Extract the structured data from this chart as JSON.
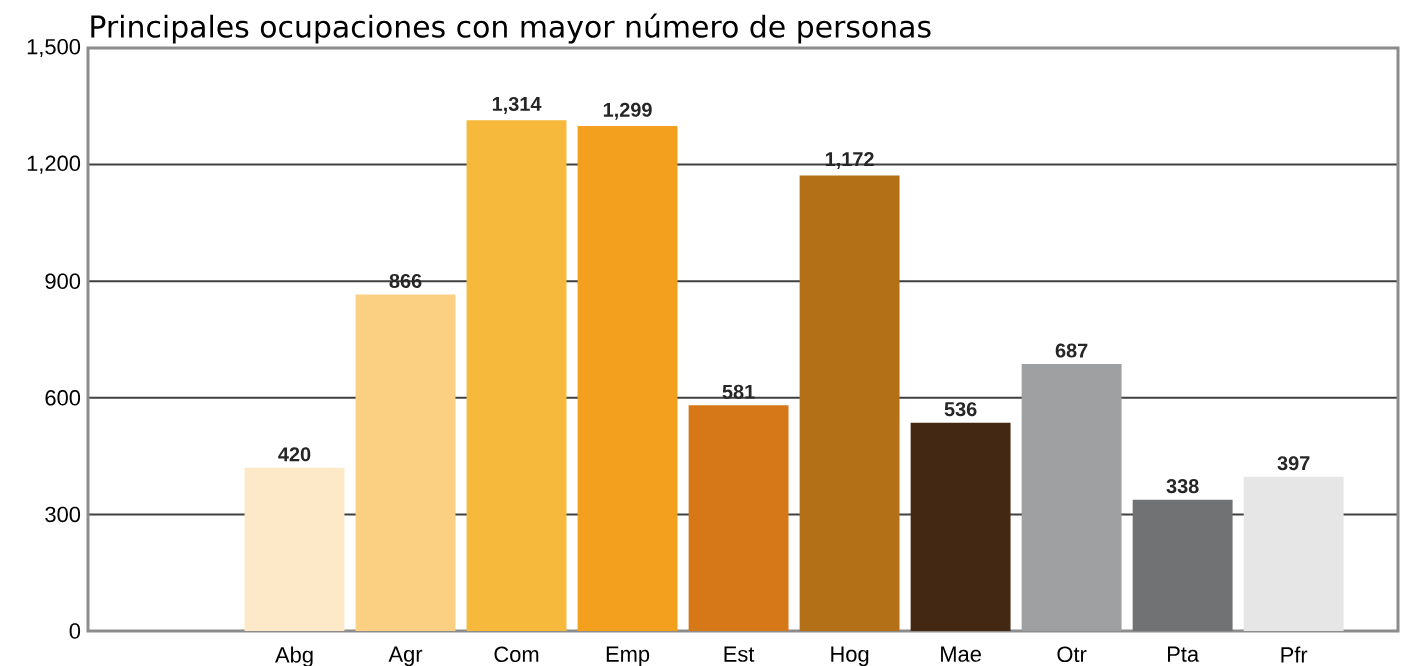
{
  "chart_data": {
    "type": "bar",
    "title": "Principales ocupaciones con mayor número de personas",
    "categories": [
      "Abg",
      "Agr",
      "Com",
      "Emp",
      "Est",
      "Hog",
      "Mae",
      "Otr",
      "Pta",
      "Pfr"
    ],
    "values": [
      420,
      866,
      1314,
      1299,
      581,
      1172,
      536,
      687,
      338,
      397
    ],
    "colors": [
      "#fde9c8",
      "#fbd083",
      "#f6b93b",
      "#f2a01e",
      "#d77818",
      "#b37016",
      "#432913",
      "#9fa0a2",
      "#717274",
      "#e6e6e6"
    ],
    "ylim": [
      0,
      1500
    ],
    "yticks": [
      0,
      300,
      600,
      900,
      {
        "value": 1200,
        "label": "1,200"
      },
      {
        "value": 1500,
        "label": "1,500"
      }
    ],
    "value_labels": [
      "420",
      "866",
      "1,314",
      "1,299",
      "581",
      "1,172",
      "536",
      "687",
      "338",
      "397"
    ],
    "grid": "y"
  }
}
